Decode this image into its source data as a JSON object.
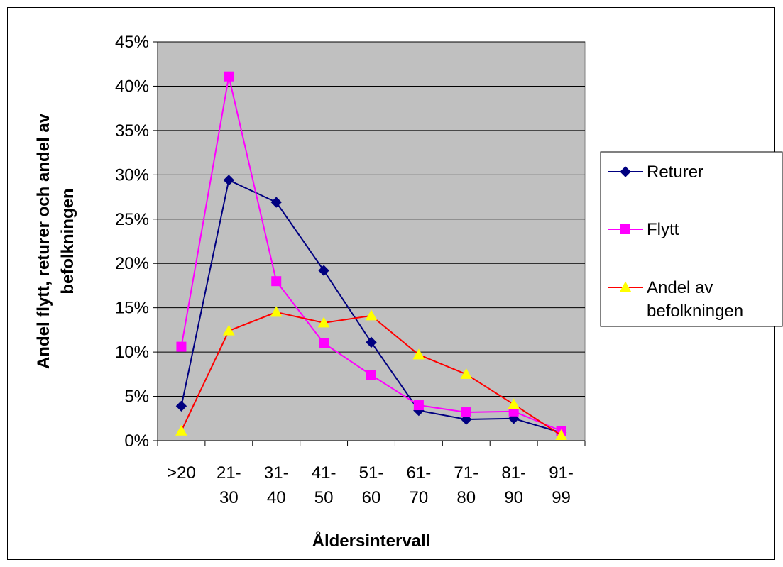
{
  "chart_data": {
    "type": "line",
    "categories": [
      [
        ">20"
      ],
      [
        "21-",
        "30"
      ],
      [
        "31-",
        "40"
      ],
      [
        "41-",
        "50"
      ],
      [
        "51-",
        "60"
      ],
      [
        "61-",
        "70"
      ],
      [
        "71-",
        "80"
      ],
      [
        "81-",
        "90"
      ],
      [
        "91-",
        "99"
      ]
    ],
    "ylim": [
      0,
      45
    ],
    "yticks": [
      0,
      5,
      10,
      15,
      20,
      25,
      30,
      35,
      40,
      45
    ],
    "ytick_suffix": "%",
    "xlabel": "Åldersintervall",
    "ylabel_lines": [
      "Andel flytt, returer och andel av",
      "befolkningen"
    ],
    "grid": "horizontal",
    "plot_background": "#c0c0c0",
    "legend_position": "right",
    "series": [
      {
        "name": [
          "Returer"
        ],
        "color": "#000080",
        "marker": "diamond",
        "marker_color": "#000080",
        "values": [
          3.9,
          29.4,
          26.9,
          19.2,
          11.1,
          3.4,
          2.4,
          2.5,
          0.9
        ]
      },
      {
        "name": [
          "Flytt"
        ],
        "color": "#ff00ff",
        "marker": "square",
        "marker_color": "#ff00ff",
        "values": [
          10.6,
          41.1,
          18.0,
          11.0,
          7.4,
          4.0,
          3.2,
          3.3,
          1.1
        ]
      },
      {
        "name": [
          "Andel av",
          "befolkningen"
        ],
        "color": "#ff0000",
        "marker": "triangle",
        "marker_color": "#ffff00",
        "values": [
          1.1,
          12.4,
          14.5,
          13.3,
          14.1,
          9.7,
          7.5,
          4.1,
          0.6
        ]
      }
    ]
  }
}
